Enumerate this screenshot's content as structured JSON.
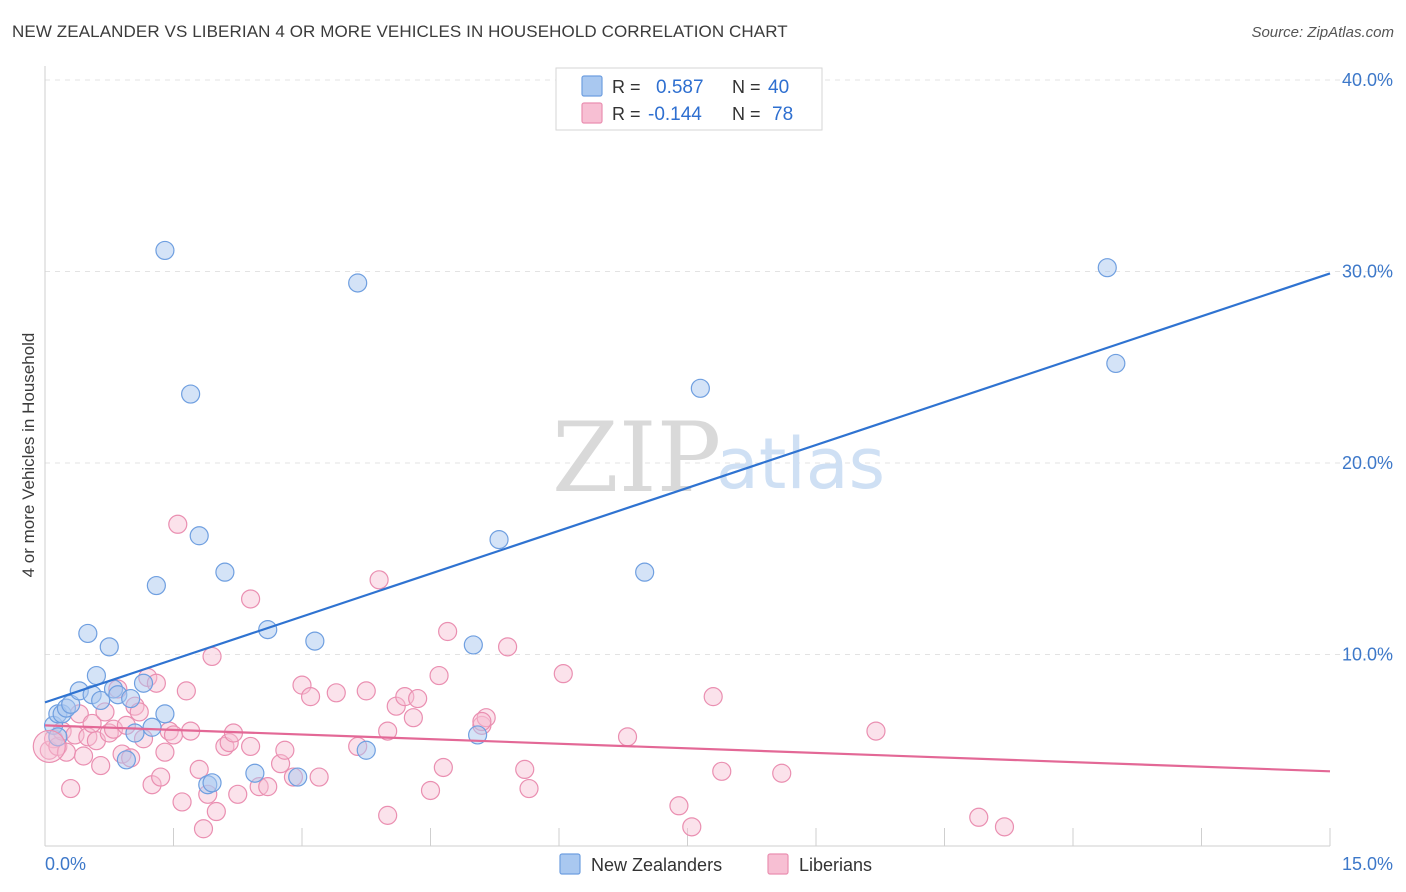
{
  "title": "NEW ZEALANDER VS LIBERIAN 4 OR MORE VEHICLES IN HOUSEHOLD CORRELATION CHART",
  "source": "Source: ZipAtlas.com",
  "watermark": {
    "zip": "ZIP",
    "atlas": "atlas"
  },
  "colors": {
    "blue_fill": "#a9c8f0",
    "blue_stroke": "#6f9fe0",
    "blue_line": "#2f73d1",
    "pink_fill": "#f7bfd3",
    "pink_stroke": "#ea8fb1",
    "pink_line": "#e36896",
    "tick_text": "#3d78c9",
    "grid": "#e3e3e3"
  },
  "legend_stats": [
    {
      "r_label": "R =",
      "r_value": "0.587",
      "n_label": "N =",
      "n_value": "40",
      "series": "New Zealanders"
    },
    {
      "r_label": "R =",
      "r_value": "-0.144",
      "n_label": "N =",
      "n_value": "78",
      "series": "Liberians"
    }
  ],
  "chart_data": {
    "type": "scatter",
    "title": "NEW ZEALANDER VS LIBERIAN 4 OR MORE VEHICLES IN HOUSEHOLD CORRELATION CHART",
    "xlabel": "",
    "ylabel": "4 or more Vehicles in Household",
    "xlim": [
      0,
      15
    ],
    "ylim": [
      0,
      40
    ],
    "x_tick_labels": [
      "0.0%",
      "15.0%"
    ],
    "y_ticks": [
      10,
      20,
      30,
      40
    ],
    "y_tick_labels": [
      "10.0%",
      "20.0%",
      "30.0%",
      "40.0%"
    ],
    "grid": true,
    "legend": [
      "New Zealanders",
      "Liberians"
    ],
    "series": [
      {
        "name": "New Zealanders",
        "color": "#a9c8f0",
        "trend": {
          "x": [
            0,
            15
          ],
          "y": [
            7.5,
            29.9
          ]
        },
        "points": [
          [
            0.1,
            6.3
          ],
          [
            0.15,
            5.7
          ],
          [
            0.15,
            6.9
          ],
          [
            0.2,
            6.9
          ],
          [
            0.25,
            7.2
          ],
          [
            0.3,
            7.4
          ],
          [
            0.4,
            8.1
          ],
          [
            0.5,
            11.1
          ],
          [
            0.55,
            7.9
          ],
          [
            0.6,
            8.9
          ],
          [
            0.65,
            7.6
          ],
          [
            0.75,
            10.4
          ],
          [
            0.8,
            8.2
          ],
          [
            0.85,
            7.9
          ],
          [
            0.95,
            4.5
          ],
          [
            1.0,
            7.7
          ],
          [
            1.05,
            5.9
          ],
          [
            1.15,
            8.5
          ],
          [
            1.25,
            6.2
          ],
          [
            1.3,
            13.6
          ],
          [
            1.4,
            6.9
          ],
          [
            1.4,
            31.1
          ],
          [
            1.7,
            23.6
          ],
          [
            1.8,
            16.2
          ],
          [
            1.9,
            3.2
          ],
          [
            1.95,
            3.3
          ],
          [
            2.1,
            14.3
          ],
          [
            2.45,
            3.8
          ],
          [
            2.6,
            11.3
          ],
          [
            2.95,
            3.6
          ],
          [
            3.15,
            10.7
          ],
          [
            3.65,
            29.4
          ],
          [
            3.75,
            5.0
          ],
          [
            5.0,
            10.5
          ],
          [
            5.05,
            5.8
          ],
          [
            5.3,
            16.0
          ],
          [
            7.0,
            14.3
          ],
          [
            7.65,
            23.9
          ],
          [
            12.4,
            30.2
          ],
          [
            12.5,
            25.2
          ]
        ]
      },
      {
        "name": "Liberians",
        "color": "#f7bfd3",
        "trend": {
          "x": [
            0,
            15
          ],
          "y": [
            6.3,
            3.9
          ]
        },
        "points": [
          [
            0.05,
            5.0
          ],
          [
            0.1,
            5.6
          ],
          [
            0.15,
            5.2
          ],
          [
            0.2,
            6.0
          ],
          [
            0.25,
            4.9
          ],
          [
            0.3,
            3.0
          ],
          [
            0.35,
            5.8
          ],
          [
            0.4,
            6.9
          ],
          [
            0.45,
            4.7
          ],
          [
            0.5,
            5.7
          ],
          [
            0.55,
            6.4
          ],
          [
            0.6,
            5.5
          ],
          [
            0.65,
            4.2
          ],
          [
            0.7,
            7.0
          ],
          [
            0.75,
            5.9
          ],
          [
            0.8,
            6.1
          ],
          [
            0.85,
            8.2
          ],
          [
            0.9,
            4.8
          ],
          [
            0.95,
            6.3
          ],
          [
            1.0,
            4.6
          ],
          [
            1.05,
            7.3
          ],
          [
            1.1,
            7.0
          ],
          [
            1.15,
            5.6
          ],
          [
            1.2,
            8.8
          ],
          [
            1.25,
            3.2
          ],
          [
            1.3,
            8.5
          ],
          [
            1.35,
            3.6
          ],
          [
            1.4,
            4.9
          ],
          [
            1.45,
            6.0
          ],
          [
            1.5,
            5.8
          ],
          [
            1.55,
            16.8
          ],
          [
            1.6,
            2.3
          ],
          [
            1.65,
            8.1
          ],
          [
            1.7,
            6.0
          ],
          [
            1.8,
            4.0
          ],
          [
            1.85,
            0.9
          ],
          [
            1.9,
            2.7
          ],
          [
            1.95,
            9.9
          ],
          [
            2.0,
            1.8
          ],
          [
            2.1,
            5.2
          ],
          [
            2.15,
            5.4
          ],
          [
            2.2,
            5.9
          ],
          [
            2.25,
            2.7
          ],
          [
            2.4,
            12.9
          ],
          [
            2.4,
            5.2
          ],
          [
            2.5,
            3.1
          ],
          [
            2.6,
            3.1
          ],
          [
            2.75,
            4.3
          ],
          [
            2.8,
            5.0
          ],
          [
            2.9,
            3.6
          ],
          [
            3.0,
            8.4
          ],
          [
            3.1,
            7.8
          ],
          [
            3.2,
            3.6
          ],
          [
            3.4,
            8.0
          ],
          [
            3.65,
            5.2
          ],
          [
            3.75,
            8.1
          ],
          [
            3.9,
            13.9
          ],
          [
            4.0,
            6.0
          ],
          [
            4.0,
            1.6
          ],
          [
            4.1,
            7.3
          ],
          [
            4.2,
            7.8
          ],
          [
            4.3,
            6.7
          ],
          [
            4.35,
            7.7
          ],
          [
            4.5,
            2.9
          ],
          [
            4.6,
            8.9
          ],
          [
            4.65,
            4.1
          ],
          [
            4.7,
            11.2
          ],
          [
            5.1,
            6.3
          ],
          [
            5.15,
            6.7
          ],
          [
            5.1,
            6.5
          ],
          [
            5.4,
            10.4
          ],
          [
            5.6,
            4.0
          ],
          [
            5.65,
            3.0
          ],
          [
            6.05,
            9.0
          ],
          [
            6.8,
            5.7
          ],
          [
            7.4,
            2.1
          ],
          [
            7.55,
            1.0
          ],
          [
            7.8,
            7.8
          ]
        ]
      }
    ],
    "extra_points_liberians": [
      [
        7.9,
        3.9
      ],
      [
        8.6,
        3.8
      ],
      [
        9.7,
        6.0
      ],
      [
        10.9,
        1.5
      ],
      [
        11.2,
        1.0
      ]
    ]
  },
  "axis": {
    "ylabel": "4 or more Vehicles in Household"
  }
}
